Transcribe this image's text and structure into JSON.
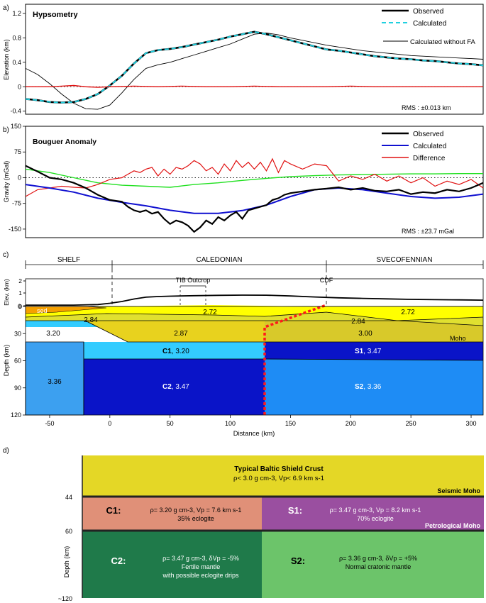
{
  "chart_data": [
    {
      "panel": "a)",
      "type": "line",
      "title": "Hypsometry",
      "ylabel": "Elevation (km)",
      "ylim": [
        -0.45,
        1.35
      ],
      "xlim": [
        -70,
        310
      ],
      "yticks": [
        -0.4,
        0,
        0.4,
        0.8,
        1.2
      ],
      "ytick_labels": [
        "-0.4",
        "0",
        "0.4",
        "0.8",
        "1.2"
      ],
      "rms": "RMS : ±0.013 km",
      "legend": [
        "Observed",
        "Calculated",
        "Calculated without FA"
      ],
      "series": [
        {
          "name": "Observed",
          "color": "#000000",
          "x": [
            -70,
            -60,
            -50,
            -40,
            -30,
            -20,
            -10,
            0,
            10,
            20,
            30,
            40,
            50,
            60,
            70,
            80,
            90,
            100,
            110,
            120,
            130,
            140,
            150,
            160,
            170,
            180,
            190,
            200,
            210,
            220,
            230,
            240,
            250,
            260,
            270,
            280,
            290,
            300,
            310
          ],
          "y": [
            -0.2,
            -0.22,
            -0.25,
            -0.26,
            -0.25,
            -0.2,
            -0.12,
            0.02,
            0.18,
            0.38,
            0.55,
            0.6,
            0.62,
            0.65,
            0.69,
            0.73,
            0.77,
            0.82,
            0.86,
            0.9,
            0.86,
            0.81,
            0.76,
            0.71,
            0.66,
            0.61,
            0.59,
            0.56,
            0.53,
            0.5,
            0.48,
            0.46,
            0.45,
            0.43,
            0.42,
            0.4,
            0.38,
            0.37,
            0.35
          ]
        },
        {
          "name": "Calculated",
          "color": "#20d0e0",
          "x": [
            -70,
            -60,
            -50,
            -40,
            -30,
            -20,
            -10,
            0,
            10,
            20,
            30,
            40,
            50,
            60,
            70,
            80,
            90,
            100,
            110,
            120,
            130,
            140,
            150,
            160,
            170,
            180,
            190,
            200,
            210,
            220,
            230,
            240,
            250,
            260,
            270,
            280,
            290,
            300,
            310
          ],
          "y": [
            -0.2,
            -0.22,
            -0.25,
            -0.26,
            -0.25,
            -0.2,
            -0.12,
            0.02,
            0.18,
            0.38,
            0.55,
            0.6,
            0.62,
            0.65,
            0.69,
            0.73,
            0.77,
            0.82,
            0.86,
            0.9,
            0.86,
            0.81,
            0.76,
            0.71,
            0.66,
            0.61,
            0.59,
            0.56,
            0.53,
            0.5,
            0.48,
            0.46,
            0.45,
            0.43,
            0.42,
            0.4,
            0.38,
            0.37,
            0.35
          ]
        },
        {
          "name": "Calculated without FA",
          "color": "#000000",
          "x": [
            -70,
            -60,
            -50,
            -40,
            -30,
            -20,
            -10,
            0,
            10,
            20,
            30,
            40,
            50,
            60,
            70,
            80,
            90,
            100,
            110,
            120,
            130,
            140,
            150,
            160,
            170,
            180,
            190,
            200,
            210,
            220,
            230,
            240,
            250,
            260,
            270,
            280,
            290,
            300,
            310
          ],
          "y": [
            0.3,
            0.2,
            0.05,
            -0.12,
            -0.27,
            -0.36,
            -0.37,
            -0.3,
            -0.1,
            0.12,
            0.3,
            0.36,
            0.4,
            0.46,
            0.52,
            0.58,
            0.64,
            0.7,
            0.78,
            0.86,
            0.88,
            0.85,
            0.8,
            0.76,
            0.72,
            0.68,
            0.65,
            0.62,
            0.59,
            0.57,
            0.55,
            0.53,
            0.51,
            0.5,
            0.49,
            0.48,
            0.47,
            0.46,
            0.45
          ]
        },
        {
          "name": "Residual",
          "color": "#e01010",
          "x": [
            -70,
            -50,
            -40,
            -30,
            -20,
            -10,
            0,
            20,
            40,
            60,
            80,
            100,
            120,
            140,
            160,
            180,
            200,
            220,
            240,
            260,
            280,
            300,
            310
          ],
          "y": [
            0,
            0,
            0.01,
            0.02,
            0,
            -0.01,
            0,
            0.01,
            0,
            0.01,
            0,
            0,
            0.01,
            0,
            0,
            0,
            0.01,
            0,
            0,
            0,
            0,
            0,
            0
          ]
        }
      ]
    },
    {
      "panel": "b)",
      "type": "line",
      "title": "Bouguer Anomaly",
      "ylabel": "Gravity (mGal)",
      "ylim": [
        -175,
        150
      ],
      "xlim": [
        -70,
        310
      ],
      "yticks": [
        -150,
        -75,
        0,
        75,
        150
      ],
      "ytick_labels": [
        "-150",
        "-75",
        "0",
        "75",
        "150"
      ],
      "rms": "RMS : ±23.7 mGal",
      "legend": [
        "Observed",
        "Calculated",
        "Difference"
      ],
      "series": [
        {
          "name": "Observed",
          "color": "#000000",
          "x": [
            -70,
            -60,
            -50,
            -40,
            -30,
            -20,
            -10,
            0,
            10,
            15,
            20,
            25,
            30,
            35,
            40,
            45,
            50,
            55,
            60,
            65,
            70,
            75,
            80,
            85,
            90,
            95,
            100,
            105,
            110,
            115,
            120,
            125,
            130,
            135,
            140,
            145,
            150,
            160,
            170,
            180,
            190,
            200,
            210,
            220,
            230,
            240,
            250,
            260,
            270,
            280,
            290,
            300,
            310
          ],
          "y": [
            35,
            18,
            0,
            -5,
            -15,
            -30,
            -50,
            -65,
            -70,
            -85,
            -95,
            -100,
            -95,
            -105,
            -100,
            -120,
            -135,
            -125,
            -130,
            -140,
            -158,
            -145,
            -125,
            -135,
            -115,
            -125,
            -110,
            -100,
            -120,
            -95,
            -90,
            -85,
            -80,
            -65,
            -60,
            -50,
            -45,
            -40,
            -35,
            -32,
            -28,
            -35,
            -30,
            -38,
            -40,
            -35,
            -48,
            -42,
            -45,
            -35,
            -40,
            -30,
            -15
          ]
        },
        {
          "name": "Calculated",
          "color": "#1010d0",
          "x": [
            -70,
            -50,
            -30,
            -10,
            10,
            30,
            50,
            70,
            90,
            110,
            130,
            150,
            170,
            190,
            210,
            230,
            250,
            270,
            290,
            310
          ],
          "y": [
            -20,
            -30,
            -42,
            -60,
            -72,
            -82,
            -95,
            -104,
            -104,
            -96,
            -80,
            -55,
            -35,
            -30,
            -35,
            -45,
            -55,
            -60,
            -57,
            -48
          ]
        },
        {
          "name": "Difference",
          "color": "#e01010",
          "x": [
            -70,
            -60,
            -50,
            -40,
            -30,
            -20,
            -10,
            0,
            10,
            15,
            20,
            25,
            30,
            35,
            40,
            45,
            50,
            55,
            60,
            65,
            70,
            75,
            80,
            85,
            90,
            95,
            100,
            105,
            110,
            115,
            120,
            125,
            130,
            135,
            140,
            145,
            150,
            160,
            170,
            180,
            190,
            200,
            210,
            220,
            230,
            240,
            250,
            260,
            270,
            280,
            290,
            300,
            310
          ],
          "y": [
            -55,
            -35,
            -30,
            -25,
            -28,
            -30,
            -20,
            -5,
            0,
            10,
            20,
            15,
            25,
            30,
            5,
            25,
            10,
            30,
            25,
            35,
            50,
            40,
            20,
            30,
            10,
            40,
            20,
            50,
            30,
            45,
            25,
            45,
            20,
            55,
            15,
            50,
            40,
            25,
            40,
            35,
            -10,
            5,
            -5,
            10,
            -10,
            5,
            -15,
            0,
            -25,
            -10,
            -20,
            -5,
            -30
          ]
        },
        {
          "name": "Green",
          "color": "#20e020",
          "x": [
            -70,
            -50,
            -30,
            -10,
            10,
            30,
            50,
            70,
            90,
            110,
            130,
            150,
            170,
            190,
            210,
            230,
            250,
            270,
            290,
            310
          ],
          "y": [
            25,
            15,
            0,
            -15,
            -22,
            -25,
            -28,
            -20,
            -15,
            -8,
            -2,
            3,
            6,
            8,
            9,
            10,
            11,
            11,
            12,
            12
          ]
        }
      ]
    },
    {
      "panel": "c)",
      "type": "table",
      "xlabel": "Distance (km)",
      "ylabel": "Depth (km)",
      "elev_label": "Elev. (km)",
      "xlim": [
        -70,
        310
      ],
      "ylim": [
        0,
        120
      ],
      "xticks": [
        -50,
        0,
        50,
        100,
        150,
        200,
        250,
        300
      ],
      "xtick_labels": [
        "-50",
        "0",
        "50",
        "100",
        "150",
        "200",
        "250",
        "300"
      ],
      "yticks": [
        0,
        30,
        60,
        90,
        120
      ],
      "ytick_labels": [
        "0",
        "30",
        "60",
        "90",
        "120"
      ],
      "elev_ticks": [
        "2",
        "1",
        "0"
      ],
      "provinces": [
        "SHELF",
        "CALEDONIAN",
        "SVECOFENNIAN"
      ],
      "outcrop_label": "TIB Outcrop",
      "cdf_label": "CDF",
      "moho_label": "Moho",
      "sed_label": "sed",
      "layer_labels": [
        "2.72",
        "2.72",
        "2.84",
        "2.84",
        "2.87",
        "3.00",
        "3.20",
        "3.36"
      ],
      "body_labels": [
        {
          "code": "C1",
          "value": ", 3.20"
        },
        {
          "code": "S1",
          "value": ", 3.47"
        },
        {
          "code": "C2",
          "value": ", 3.47"
        },
        {
          "code": "S2",
          "value": ", 3.36"
        }
      ],
      "topo": {
        "x": [
          -70,
          -50,
          -30,
          -10,
          0,
          10,
          20,
          30,
          40,
          50,
          70,
          90,
          110,
          130,
          150,
          170,
          190,
          210,
          230,
          250,
          270,
          290,
          310
        ],
        "y": [
          0.05,
          0.05,
          0.05,
          0.1,
          0.2,
          0.35,
          0.55,
          0.7,
          0.75,
          0.78,
          0.82,
          0.85,
          0.87,
          0.86,
          0.8,
          0.72,
          0.65,
          0.6,
          0.56,
          0.52,
          0.5,
          0.48,
          0.46
        ]
      },
      "colors": {
        "yellow": "#ffff00",
        "olive": "#e8d21e",
        "olive_dark": "#d8c92a",
        "cyan": "#33ccff",
        "blue_dark": "#0a14c8",
        "blue_mid": "#1e8cf5",
        "blue_light": "#3ca0f0",
        "sed": "#f5a000",
        "red": "#ff1a1a"
      }
    },
    {
      "panel": "d)",
      "type": "table",
      "ylabel": "Depth (km)",
      "depth_ticks": [
        "44",
        "60",
        "~120"
      ],
      "crust": {
        "title": "Typical Baltic Shield Crust",
        "detail": "ρ< 3.0 g cm-3,  Vp< 6.9 km s-1",
        "moho": "Seismic Moho",
        "color": "#e4d726"
      },
      "C1": {
        "label": "C1:",
        "line1": "ρ= 3.20 g cm-3, Vp = 7.6 km s-1",
        "line2": "35% eclogite",
        "color": "#e09078"
      },
      "S1": {
        "label": "S1:",
        "line1": "ρ= 3.47 g cm-3, Vp = 8.2 km s-1",
        "line2": "70% eclogite",
        "moho": "Petrological Moho",
        "color": "#9a4fa0"
      },
      "C2": {
        "label": "C2:",
        "line1": "ρ= 3.47 g cm-3,  δVp = -5%",
        "line2": "Fertile mantle",
        "line3": "with possible eclogite drips",
        "color": "#1f7a4a"
      },
      "S2": {
        "label": "S2:",
        "line1": "ρ= 3.36 g cm-3,  δVp = +5%",
        "line2": "Normal cratonic mantle",
        "color": "#6cc46a"
      }
    }
  ]
}
